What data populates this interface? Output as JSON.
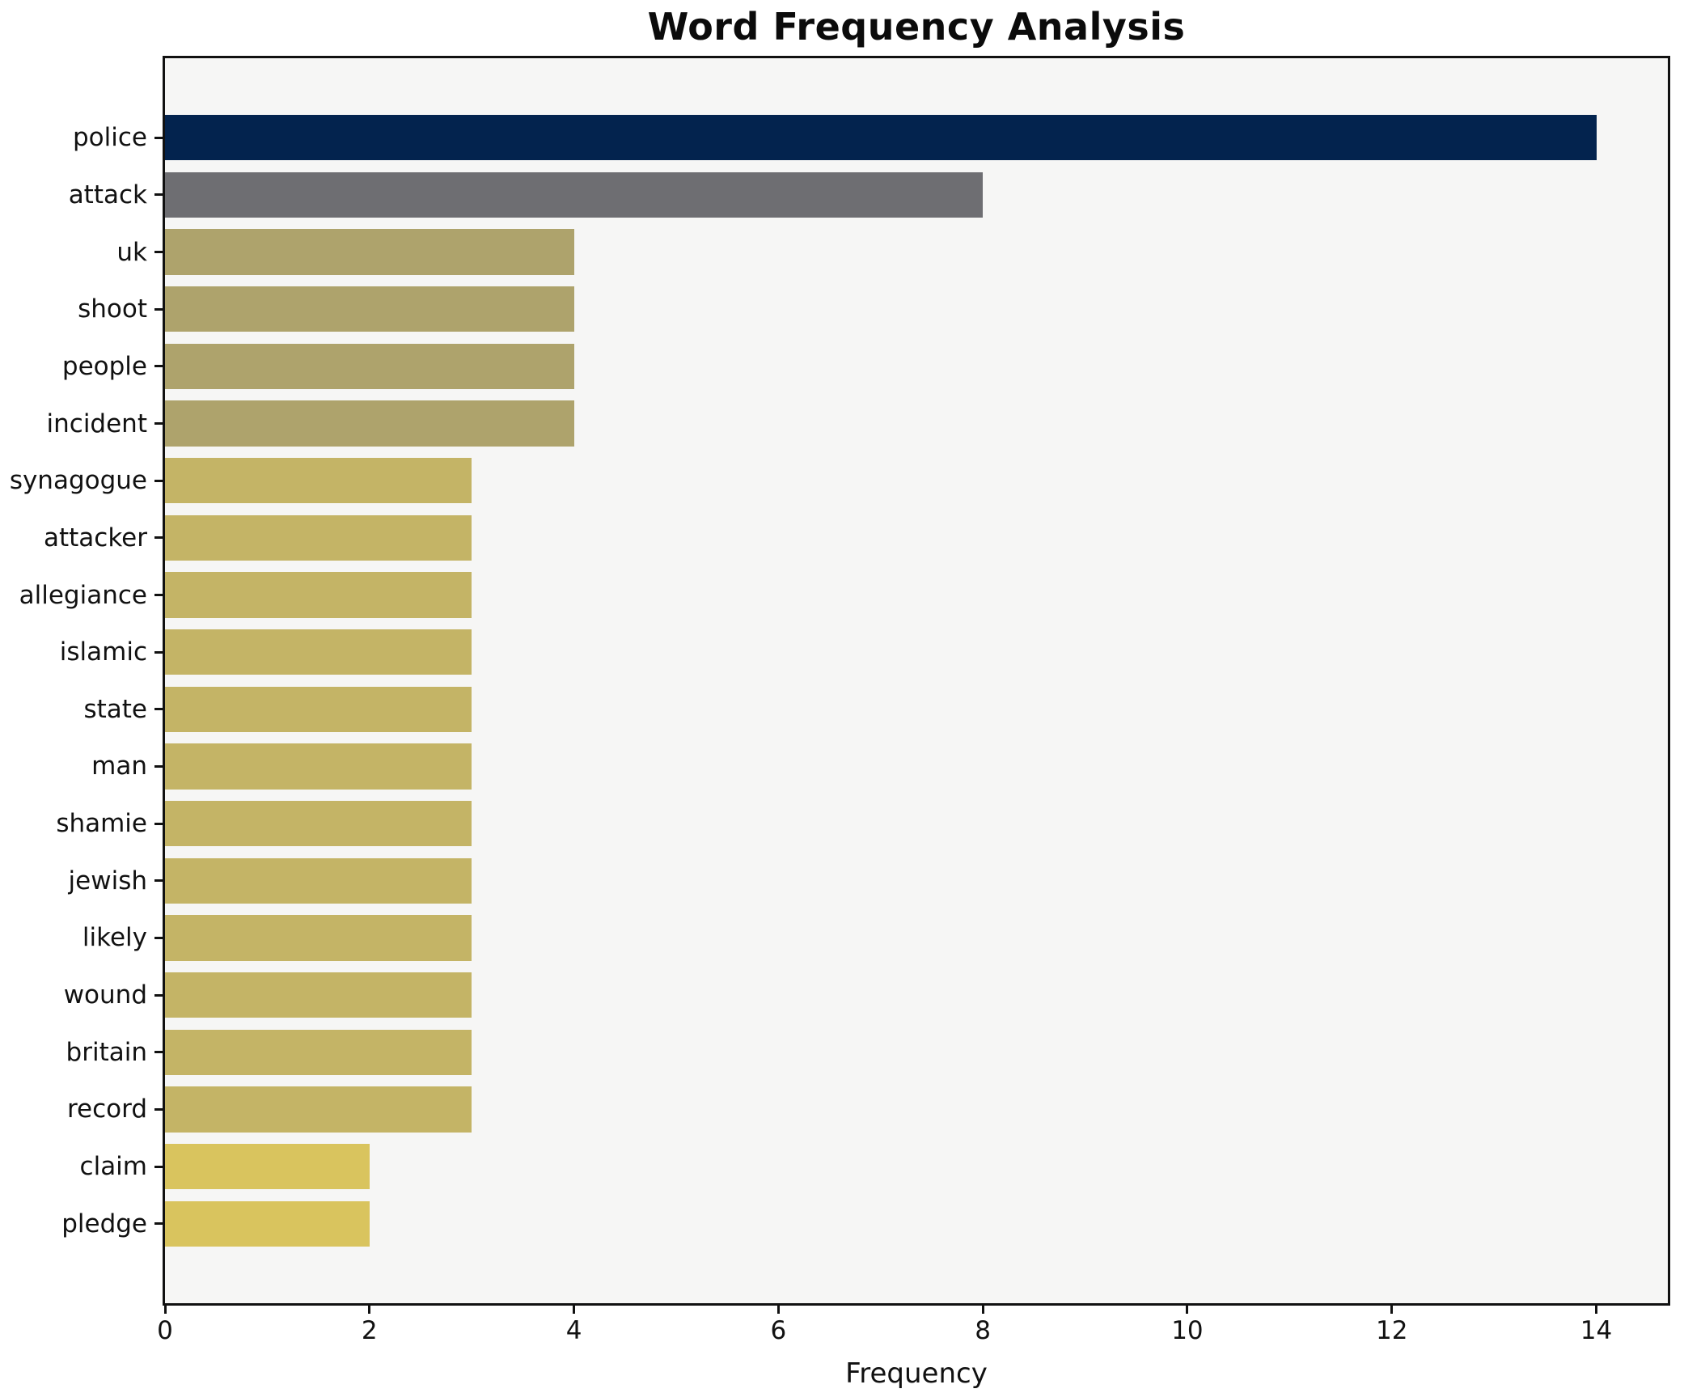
{
  "chart_data": {
    "type": "bar",
    "orientation": "horizontal",
    "title": "Word Frequency Analysis",
    "xlabel": "Frequency",
    "ylabel": "",
    "categories": [
      "police",
      "attack",
      "uk",
      "shoot",
      "people",
      "incident",
      "synagogue",
      "attacker",
      "allegiance",
      "islamic",
      "state",
      "man",
      "shamie",
      "jewish",
      "likely",
      "wound",
      "britain",
      "record",
      "claim",
      "pledge"
    ],
    "values": [
      14,
      8,
      4,
      4,
      4,
      4,
      3,
      3,
      3,
      3,
      3,
      3,
      3,
      3,
      3,
      3,
      3,
      3,
      2,
      2
    ],
    "bar_colors": [
      "#03234e",
      "#6e6e72",
      "#aea36c",
      "#aea36c",
      "#aea36c",
      "#aea36c",
      "#c4b466",
      "#c4b466",
      "#c4b466",
      "#c4b466",
      "#c4b466",
      "#c4b466",
      "#c4b466",
      "#c4b466",
      "#c4b466",
      "#c4b466",
      "#c4b466",
      "#c4b466",
      "#d9c45e",
      "#d9c45e"
    ],
    "xlim": [
      0,
      14.7
    ],
    "x_tick_values": [
      0,
      2,
      4,
      6,
      8,
      10,
      12,
      14
    ],
    "x_tick_labels": [
      "0",
      "2",
      "4",
      "6",
      "8",
      "10",
      "12",
      "14"
    ],
    "grid": false,
    "legend": null,
    "bar_height_fraction": 0.8,
    "plot_background": "#f6f6f5",
    "figure_background": "#ffffff",
    "spine_color": "#111111"
  }
}
